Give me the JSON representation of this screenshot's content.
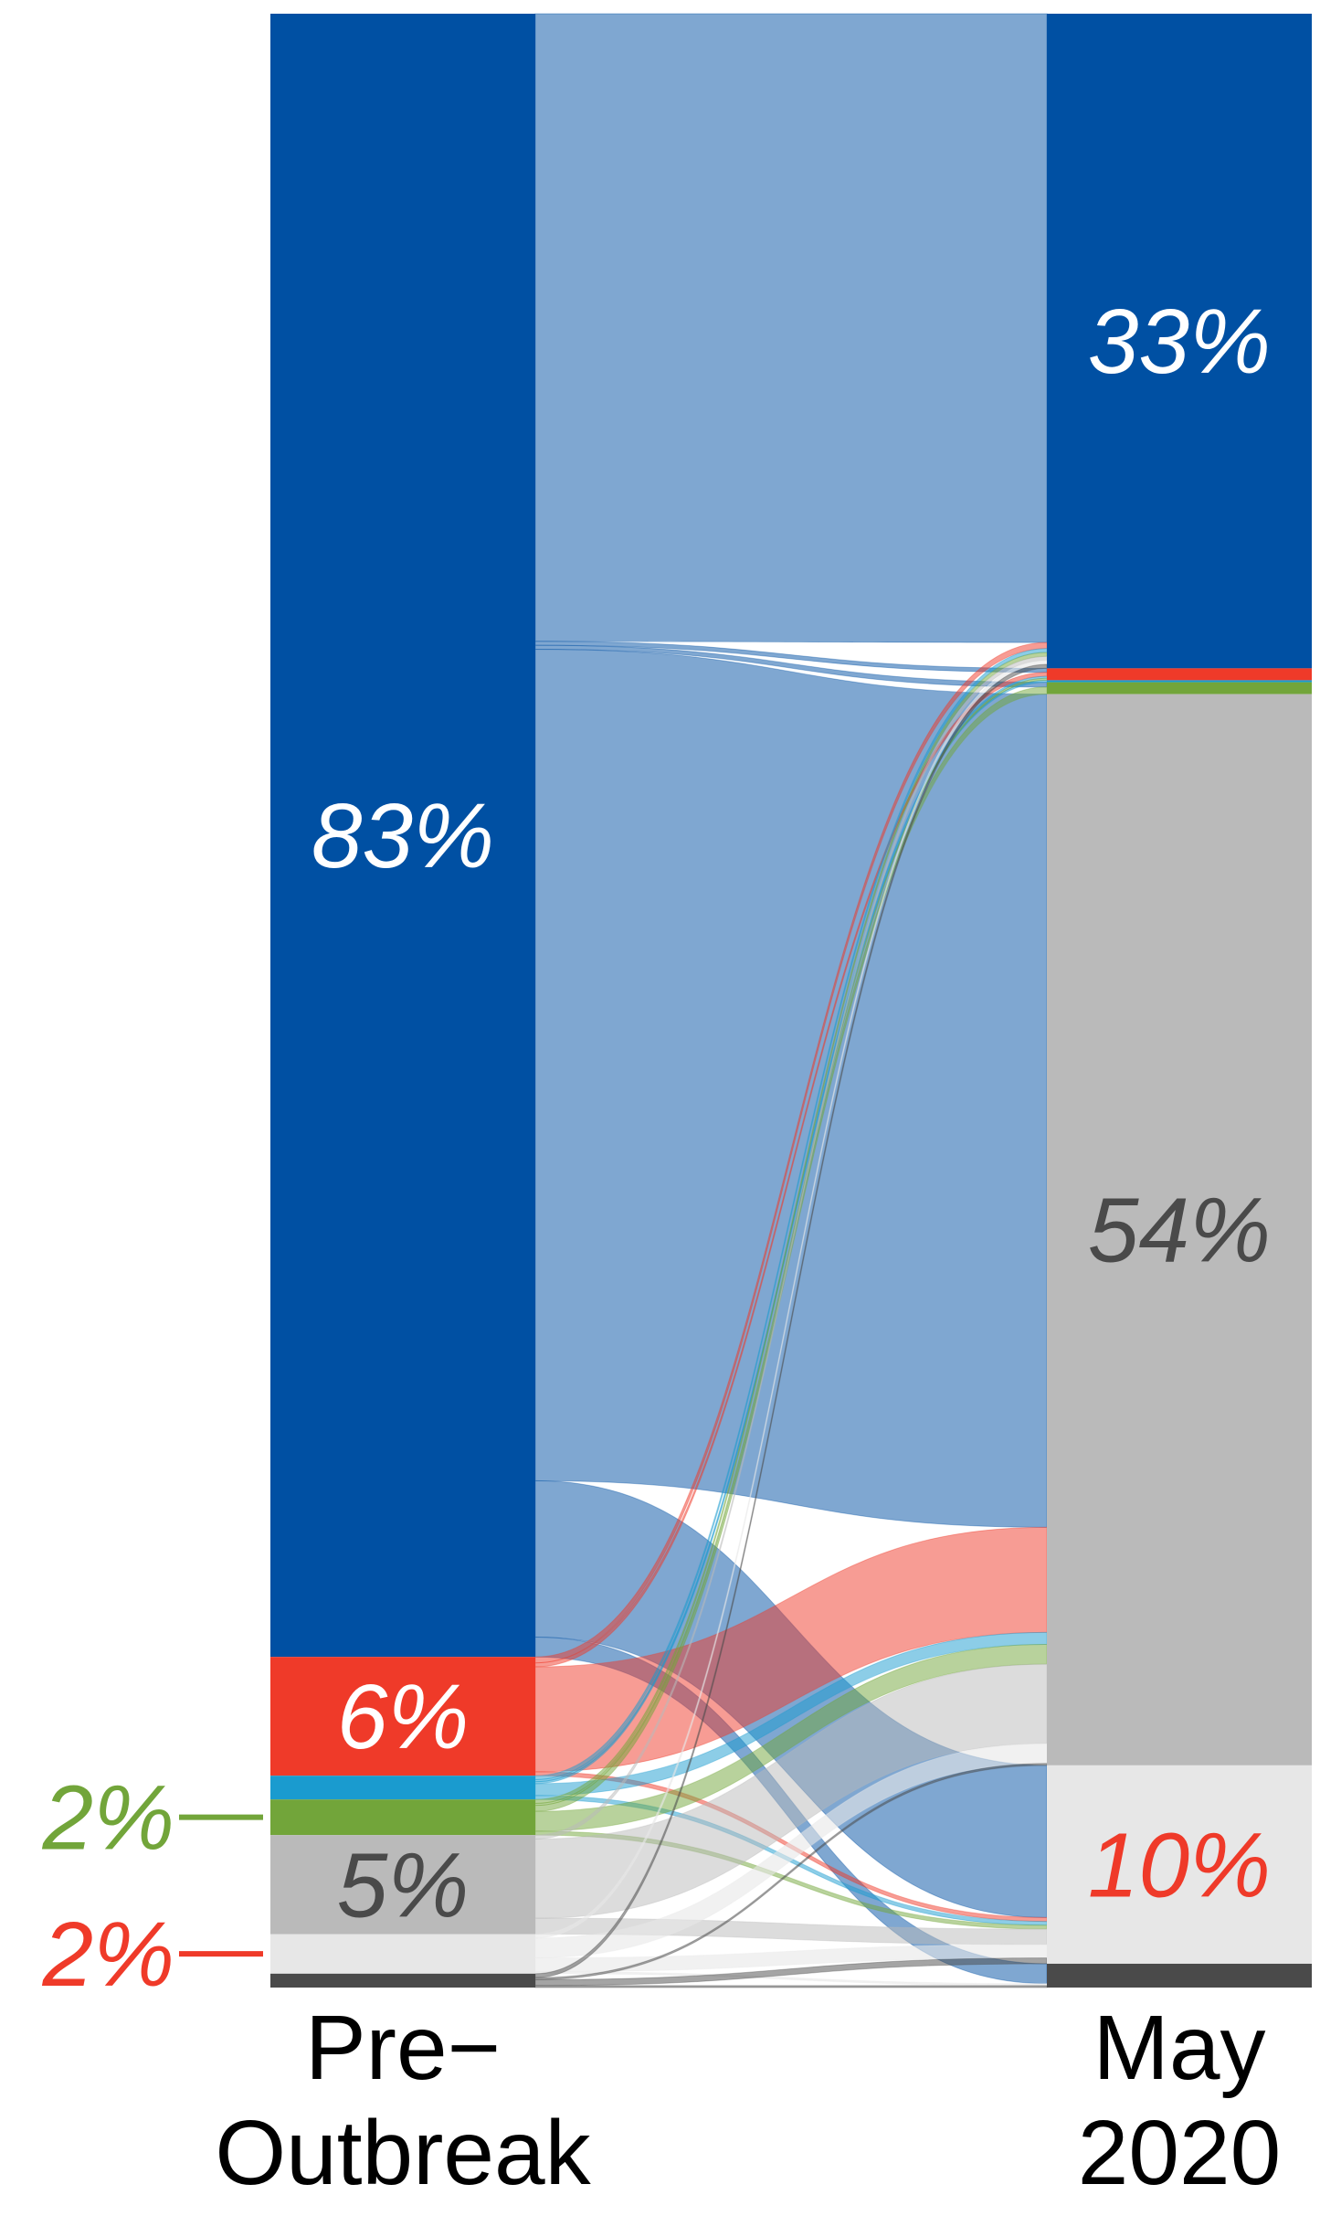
{
  "chart_data": {
    "type": "sankey",
    "columns": [
      {
        "label_lines": [
          "Pre−",
          "Outbreak"
        ]
      },
      {
        "label_lines": [
          "May",
          "2020"
        ]
      }
    ],
    "categories": [
      {
        "id": "blue",
        "color": "#0050a3"
      },
      {
        "id": "red",
        "color": "#ef3a29"
      },
      {
        "id": "cyan",
        "color": "#1a9bcf"
      },
      {
        "id": "green",
        "color": "#72a53a"
      },
      {
        "id": "gray",
        "color": "#bababa"
      },
      {
        "id": "light",
        "color": "#e7e7e7"
      },
      {
        "id": "dark",
        "color": "#4a4a4a"
      }
    ],
    "left_shares": {
      "blue": 83,
      "red": 6,
      "cyan": 1.2,
      "green": 1.8,
      "gray": 5,
      "light": 2,
      "dark": 0.7
    },
    "right_shares": {
      "blue": 33,
      "red": 0.6,
      "cyan": 0.1,
      "green": 0.6,
      "gray": 54,
      "light": 10,
      "dark": 1.2
    },
    "flows": [
      {
        "from": "blue",
        "to": "blue",
        "value": 31.7
      },
      {
        "from": "blue",
        "to": "red",
        "value": 0.2
      },
      {
        "from": "blue",
        "to": "green",
        "value": 0.2
      },
      {
        "from": "blue",
        "to": "gray",
        "value": 42
      },
      {
        "from": "blue",
        "to": "light",
        "value": 7.9
      },
      {
        "from": "blue",
        "to": "dark",
        "value": 1.0
      },
      {
        "from": "red",
        "to": "blue",
        "value": 0.3
      },
      {
        "from": "red",
        "to": "red",
        "value": 0.2
      },
      {
        "from": "red",
        "to": "gray",
        "value": 5.3
      },
      {
        "from": "red",
        "to": "light",
        "value": 0.2
      },
      {
        "from": "cyan",
        "to": "blue",
        "value": 0.2
      },
      {
        "from": "cyan",
        "to": "red",
        "value": 0.1
      },
      {
        "from": "cyan",
        "to": "cyan",
        "value": 0.1
      },
      {
        "from": "cyan",
        "to": "gray",
        "value": 0.6
      },
      {
        "from": "cyan",
        "to": "light",
        "value": 0.2
      },
      {
        "from": "green",
        "to": "blue",
        "value": 0.2
      },
      {
        "from": "green",
        "to": "red",
        "value": 0.1
      },
      {
        "from": "green",
        "to": "green",
        "value": 0.3
      },
      {
        "from": "green",
        "to": "gray",
        "value": 1.0
      },
      {
        "from": "green",
        "to": "light",
        "value": 0.2
      },
      {
        "from": "gray",
        "to": "blue",
        "value": 0.2
      },
      {
        "from": "gray",
        "to": "gray",
        "value": 4.0
      },
      {
        "from": "gray",
        "to": "light",
        "value": 0.8
      },
      {
        "from": "light",
        "to": "blue",
        "value": 0.2
      },
      {
        "from": "light",
        "to": "gray",
        "value": 1.0
      },
      {
        "from": "light",
        "to": "light",
        "value": 0.7
      },
      {
        "from": "light",
        "to": "dark",
        "value": 0.1
      },
      {
        "from": "dark",
        "to": "blue",
        "value": 0.2
      },
      {
        "from": "dark",
        "to": "gray",
        "value": 0.1
      },
      {
        "from": "dark",
        "to": "light",
        "value": 0.3
      },
      {
        "from": "dark",
        "to": "dark",
        "value": 0.1
      }
    ],
    "labels": {
      "left": [
        {
          "category": "blue",
          "text": "83%",
          "color": "#ffffff",
          "placement": "inside"
        },
        {
          "category": "red",
          "text": "6%",
          "color": "#ffffff",
          "placement": "inside"
        },
        {
          "category": "green",
          "text": "2%",
          "color": "#72a53a",
          "placement": "outside-left"
        },
        {
          "category": "gray",
          "text": "5%",
          "color": "#4a4a4a",
          "placement": "inside"
        },
        {
          "category": "light",
          "text": "2%",
          "color": "#ef3a29",
          "placement": "outside-left"
        }
      ],
      "right": [
        {
          "category": "blue",
          "text": "33%",
          "color": "#ffffff",
          "placement": "inside"
        },
        {
          "category": "gray",
          "text": "54%",
          "color": "#4a4a4a",
          "placement": "inside"
        },
        {
          "category": "light",
          "text": "10%",
          "color": "#ef3a29",
          "placement": "inside"
        }
      ]
    },
    "flow_opacity": 0.5,
    "legend": "none",
    "grid": false
  }
}
